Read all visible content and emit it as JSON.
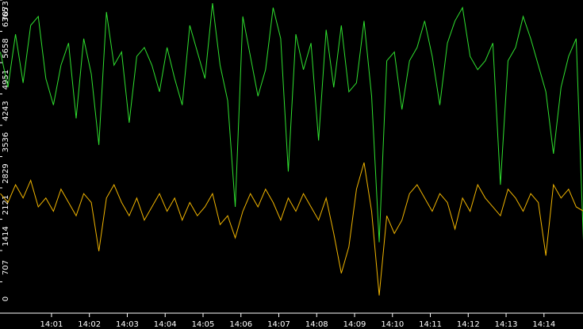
{
  "chart_data": {
    "type": "line",
    "x": [
      -0.35,
      -0.15,
      0.05,
      0.25,
      0.45,
      0.65,
      0.85,
      1.05,
      1.25,
      1.45,
      1.65,
      1.85,
      2.05,
      2.25,
      2.45,
      2.65,
      2.85,
      3.05,
      3.25,
      3.45,
      3.65,
      3.85,
      4.05,
      4.25,
      4.45,
      4.65,
      4.85,
      5.05,
      5.25,
      5.45,
      5.65,
      5.85,
      6.05,
      6.25,
      6.45,
      6.65,
      6.85,
      7.05,
      7.25,
      7.45,
      7.65,
      7.85,
      8.05,
      8.25,
      8.45,
      8.65,
      8.85,
      9.05,
      9.25,
      9.45,
      9.65,
      9.85,
      10.05,
      10.25,
      10.45,
      10.65,
      10.85,
      11.05,
      11.25,
      11.45,
      11.65,
      11.85,
      12.05,
      12.25,
      12.45,
      12.65,
      12.85,
      13.05,
      13.25,
      13.45,
      13.65,
      13.85,
      14.05,
      14.25,
      14.45,
      14.65,
      14.85,
      15.05
    ],
    "series": [
      {
        "color": "#2fe02f",
        "values": [
          5900,
          5100,
          6300,
          5200,
          6500,
          6700,
          5300,
          4700,
          5600,
          6100,
          4400,
          6200,
          5400,
          3800,
          6800,
          5600,
          5900,
          4300,
          5800,
          6000,
          5600,
          5000,
          6000,
          5300,
          4700,
          6500,
          5900,
          5300,
          7000,
          5600,
          4800,
          2400,
          6700,
          5800,
          4900,
          5500,
          6900,
          6200,
          3200,
          6300,
          5500,
          6100,
          3900,
          6400,
          5100,
          6500,
          5000,
          5200,
          6600,
          4900,
          1600,
          5700,
          5900,
          4600,
          5700,
          6000,
          6600,
          5800,
          4700,
          6100,
          6600,
          6900,
          5800,
          5500,
          5700,
          6100,
          2900,
          5700,
          6000,
          6700,
          6200,
          5600,
          5000,
          3600,
          5100,
          5800,
          6200,
          1400
        ]
      },
      {
        "color": "#f0b400",
        "values": [
          2700,
          2500,
          2900,
          2600,
          3000,
          2400,
          2600,
          2300,
          2800,
          2500,
          2200,
          2700,
          2500,
          1400,
          2600,
          2900,
          2500,
          2200,
          2600,
          2100,
          2400,
          2700,
          2300,
          2600,
          2100,
          2500,
          2200,
          2400,
          2700,
          2000,
          2200,
          1700,
          2300,
          2700,
          2400,
          2800,
          2500,
          2100,
          2600,
          2300,
          2700,
          2400,
          2100,
          2600,
          1800,
          900,
          1500,
          2800,
          3400,
          2300,
          400,
          2200,
          1800,
          2100,
          2700,
          2900,
          2600,
          2300,
          2700,
          2500,
          1900,
          2600,
          2300,
          2900,
          2600,
          2400,
          2200,
          2800,
          2600,
          2300,
          2700,
          2500,
          1300,
          2900,
          2600,
          2800,
          2400,
          2300
        ]
      }
    ],
    "xlim": [
      -0.36,
      15.03
    ],
    "xticks": [
      {
        "value": 1,
        "label": "14:01"
      },
      {
        "value": 2,
        "label": "14:02"
      },
      {
        "value": 3,
        "label": "14:03"
      },
      {
        "value": 4,
        "label": "14:04"
      },
      {
        "value": 5,
        "label": "14:05"
      },
      {
        "value": 6,
        "label": "14:06"
      },
      {
        "value": 7,
        "label": "14:07"
      },
      {
        "value": 8,
        "label": "14:08"
      },
      {
        "value": 9,
        "label": "14:09"
      },
      {
        "value": 10,
        "label": "14:10"
      },
      {
        "value": 11,
        "label": "14:11"
      },
      {
        "value": 12,
        "label": "14:12"
      },
      {
        "value": 13,
        "label": "14:13"
      },
      {
        "value": 14,
        "label": "14:14"
      }
    ],
    "ylim": [
      0,
      7073
    ],
    "yticks": [
      0,
      707,
      1414,
      2121,
      2829,
      3536,
      4243,
      4951,
      5658,
      6365,
      7073
    ],
    "grid": false
  }
}
